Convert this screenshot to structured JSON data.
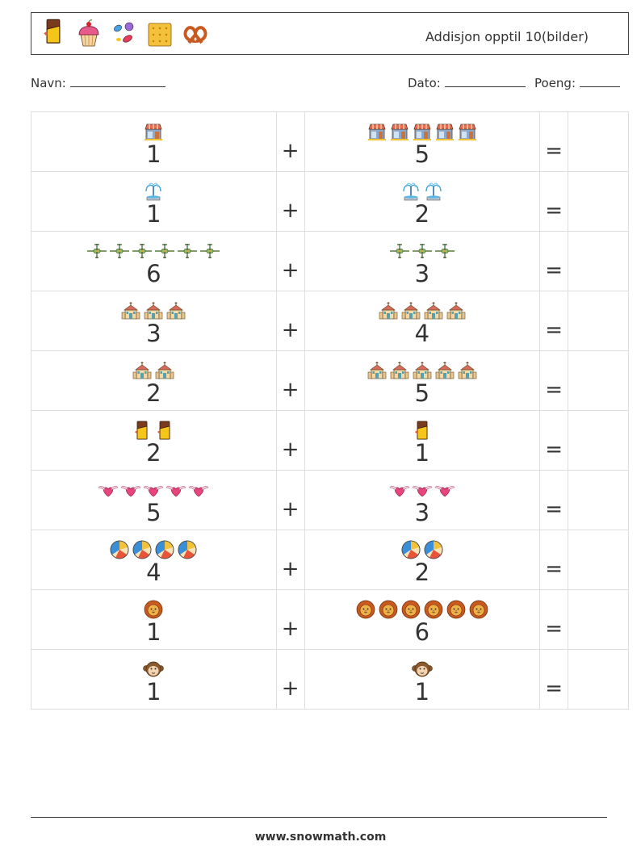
{
  "header": {
    "title": "Addisjon opptil 10(bilder)",
    "icons": [
      "chocolate-icon",
      "cupcake-icon",
      "candy-icon",
      "biscuit-icon",
      "pretzel-icon"
    ]
  },
  "meta": {
    "name_label": "Navn:",
    "date_label": "Dato:",
    "score_label": "Poeng:"
  },
  "plus_sign": "+",
  "equals_sign": "=",
  "rows": [
    {
      "a": 1,
      "b": 5,
      "icon": "shop"
    },
    {
      "a": 1,
      "b": 2,
      "icon": "fountain"
    },
    {
      "a": 6,
      "b": 3,
      "icon": "airplane"
    },
    {
      "a": 3,
      "b": 4,
      "icon": "church"
    },
    {
      "a": 2,
      "b": 5,
      "icon": "church"
    },
    {
      "a": 2,
      "b": 1,
      "icon": "chocolate"
    },
    {
      "a": 5,
      "b": 3,
      "icon": "heart-wings"
    },
    {
      "a": 4,
      "b": 2,
      "icon": "beach-ball"
    },
    {
      "a": 1,
      "b": 6,
      "icon": "lion"
    },
    {
      "a": 1,
      "b": 1,
      "icon": "monkey"
    }
  ],
  "footer": {
    "url": "www.snowmath.com"
  }
}
